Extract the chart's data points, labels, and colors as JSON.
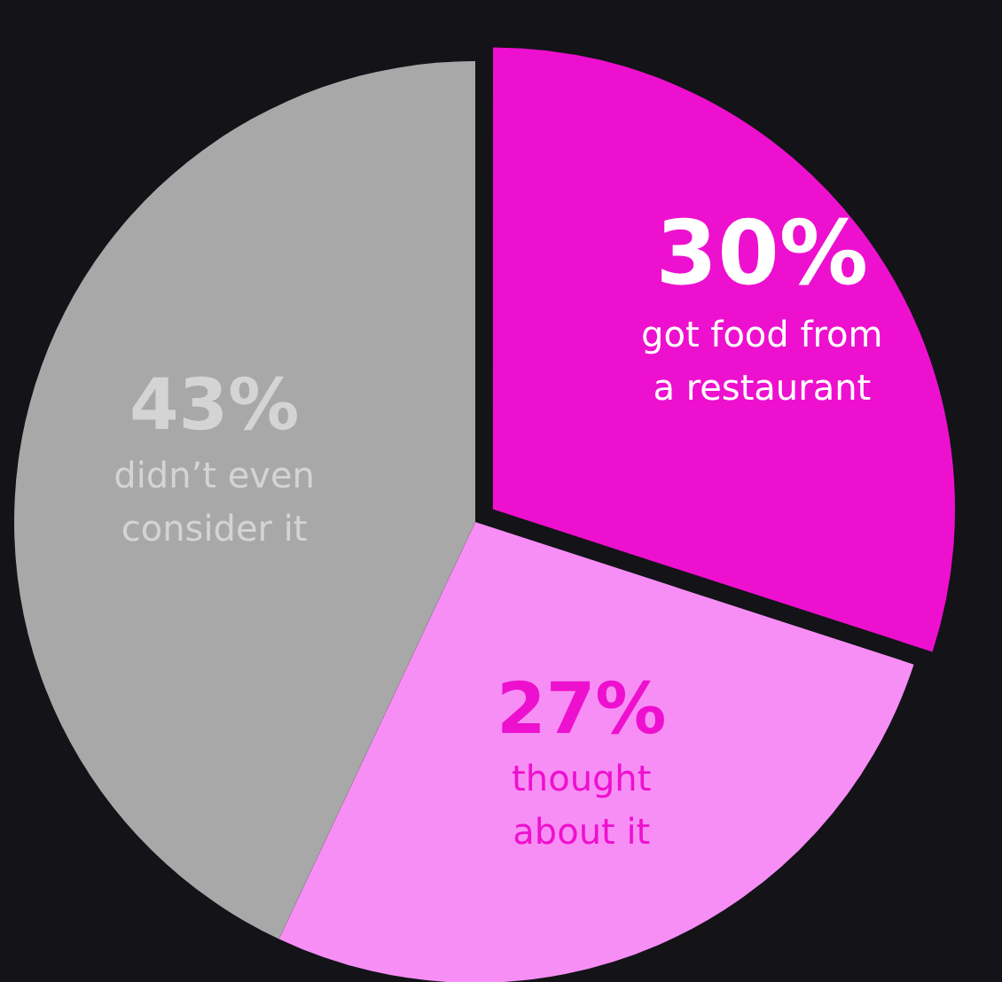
{
  "chart_data": {
    "type": "pie",
    "categories": [
      "got food from a restaurant",
      "thought about it",
      "didn’t even consider it"
    ],
    "values": [
      30,
      27,
      43
    ],
    "colors": [
      "#ee10cf",
      "#f78ef5",
      "#a8a8a8"
    ],
    "value_labels": [
      "30%",
      "27%",
      "43%"
    ],
    "legend": false
  }
}
